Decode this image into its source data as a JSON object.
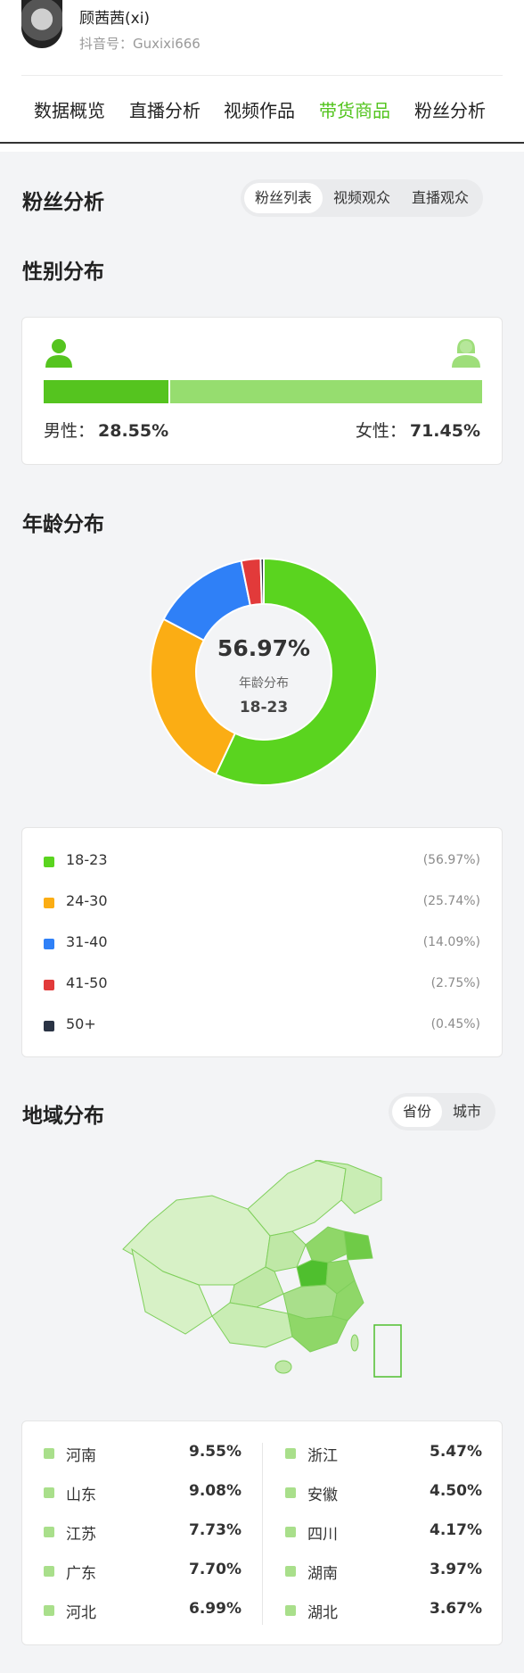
{
  "profile": {
    "name": "顾茜茜(xi)",
    "id_text": "抖音号：Guxixi666"
  },
  "tabs": [
    {
      "label": "数据概览"
    },
    {
      "label": "直播分析"
    },
    {
      "label": "视频作品"
    },
    {
      "label": "带货商品",
      "active": true
    },
    {
      "label": "粉丝分析"
    }
  ],
  "fans": {
    "title": "粉丝分析",
    "segments": [
      {
        "label": "粉丝列表",
        "active": true
      },
      {
        "label": "视频观众"
      },
      {
        "label": "直播观众"
      }
    ]
  },
  "gender": {
    "title": "性别分布",
    "male_label": "男性：",
    "male_value": "28.55%",
    "male_share": 28.55,
    "female_label": "女性：",
    "female_value": "71.45%",
    "female_share": 71.45,
    "colors": {
      "male": "#55c41f",
      "female": "#96dd6f",
      "male_icon": "#55c41f",
      "female_icon": "#9ede7a"
    }
  },
  "age": {
    "title": "年龄分布",
    "center_value": "56.97%",
    "center_label": "年龄分布",
    "center_category": "18-23"
  },
  "chart_data": {
    "type": "pie",
    "categories": [
      "18-23",
      "24-30",
      "31-40",
      "41-50",
      "50+"
    ],
    "values": [
      56.97,
      25.74,
      14.09,
      2.75,
      0.45
    ],
    "labels": [
      "(56.97%)",
      "(25.74%)",
      "(14.09%)",
      "(2.75%)",
      "(0.45%)"
    ],
    "colors": [
      "#5ad41f",
      "#fbad14",
      "#2f80f7",
      "#e23a3a",
      "#2a3344"
    ]
  },
  "region": {
    "title": "地域分布",
    "segments": [
      {
        "label": "省份",
        "active": true
      },
      {
        "label": "城市"
      }
    ],
    "left": [
      {
        "name": "河南",
        "value": "9.55%"
      },
      {
        "name": "山东",
        "value": "9.08%"
      },
      {
        "name": "江苏",
        "value": "7.73%"
      },
      {
        "name": "广东",
        "value": "7.70%"
      },
      {
        "name": "河北",
        "value": "6.99%"
      }
    ],
    "right": [
      {
        "name": "浙江",
        "value": "5.47%"
      },
      {
        "name": "安徽",
        "value": "4.50%"
      },
      {
        "name": "四川",
        "value": "4.17%"
      },
      {
        "name": "湖南",
        "value": "3.97%"
      },
      {
        "name": "湖北",
        "value": "3.67%"
      }
    ],
    "map_colors": {
      "base": "#d7f1c6",
      "light": "#bfe8a6",
      "mid": "#8fd768",
      "dark": "#4fbf2e",
      "border": "#7fcf5b"
    }
  }
}
